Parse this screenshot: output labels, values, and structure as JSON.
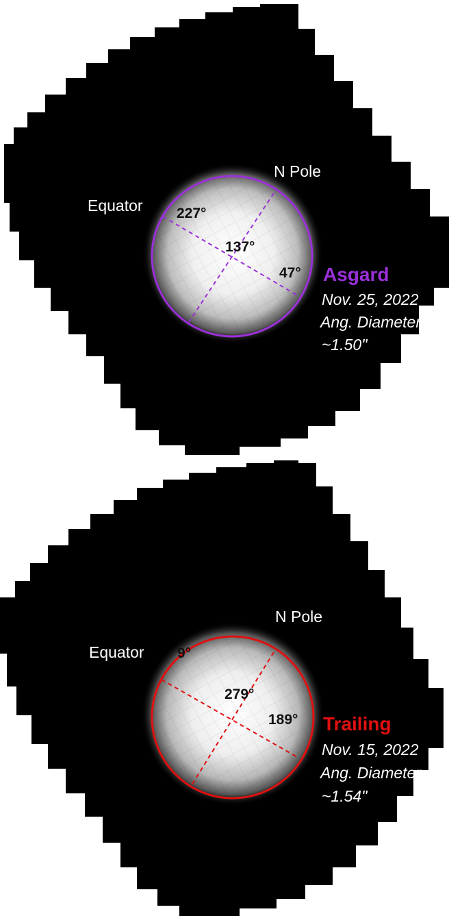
{
  "panels": [
    {
      "target": "Asgard",
      "date": "Nov. 25, 2022",
      "diameter_label": "Ang. Diameter",
      "diameter_value": "~1.50\"",
      "pole_label": "N Pole",
      "equator_label": "Equator",
      "lon_top": "227°",
      "lon_center": "137°",
      "lon_right": "47°",
      "accent": "#9b30d9"
    },
    {
      "target": "Trailing",
      "date": "Nov. 15, 2022",
      "diameter_label": "Ang. Diameter",
      "diameter_value": "~1.54\"",
      "pole_label": "N Pole",
      "equator_label": "Equator",
      "lon_top": "9°",
      "lon_center": "279°",
      "lon_right": "189°",
      "accent": "#e01010"
    }
  ]
}
